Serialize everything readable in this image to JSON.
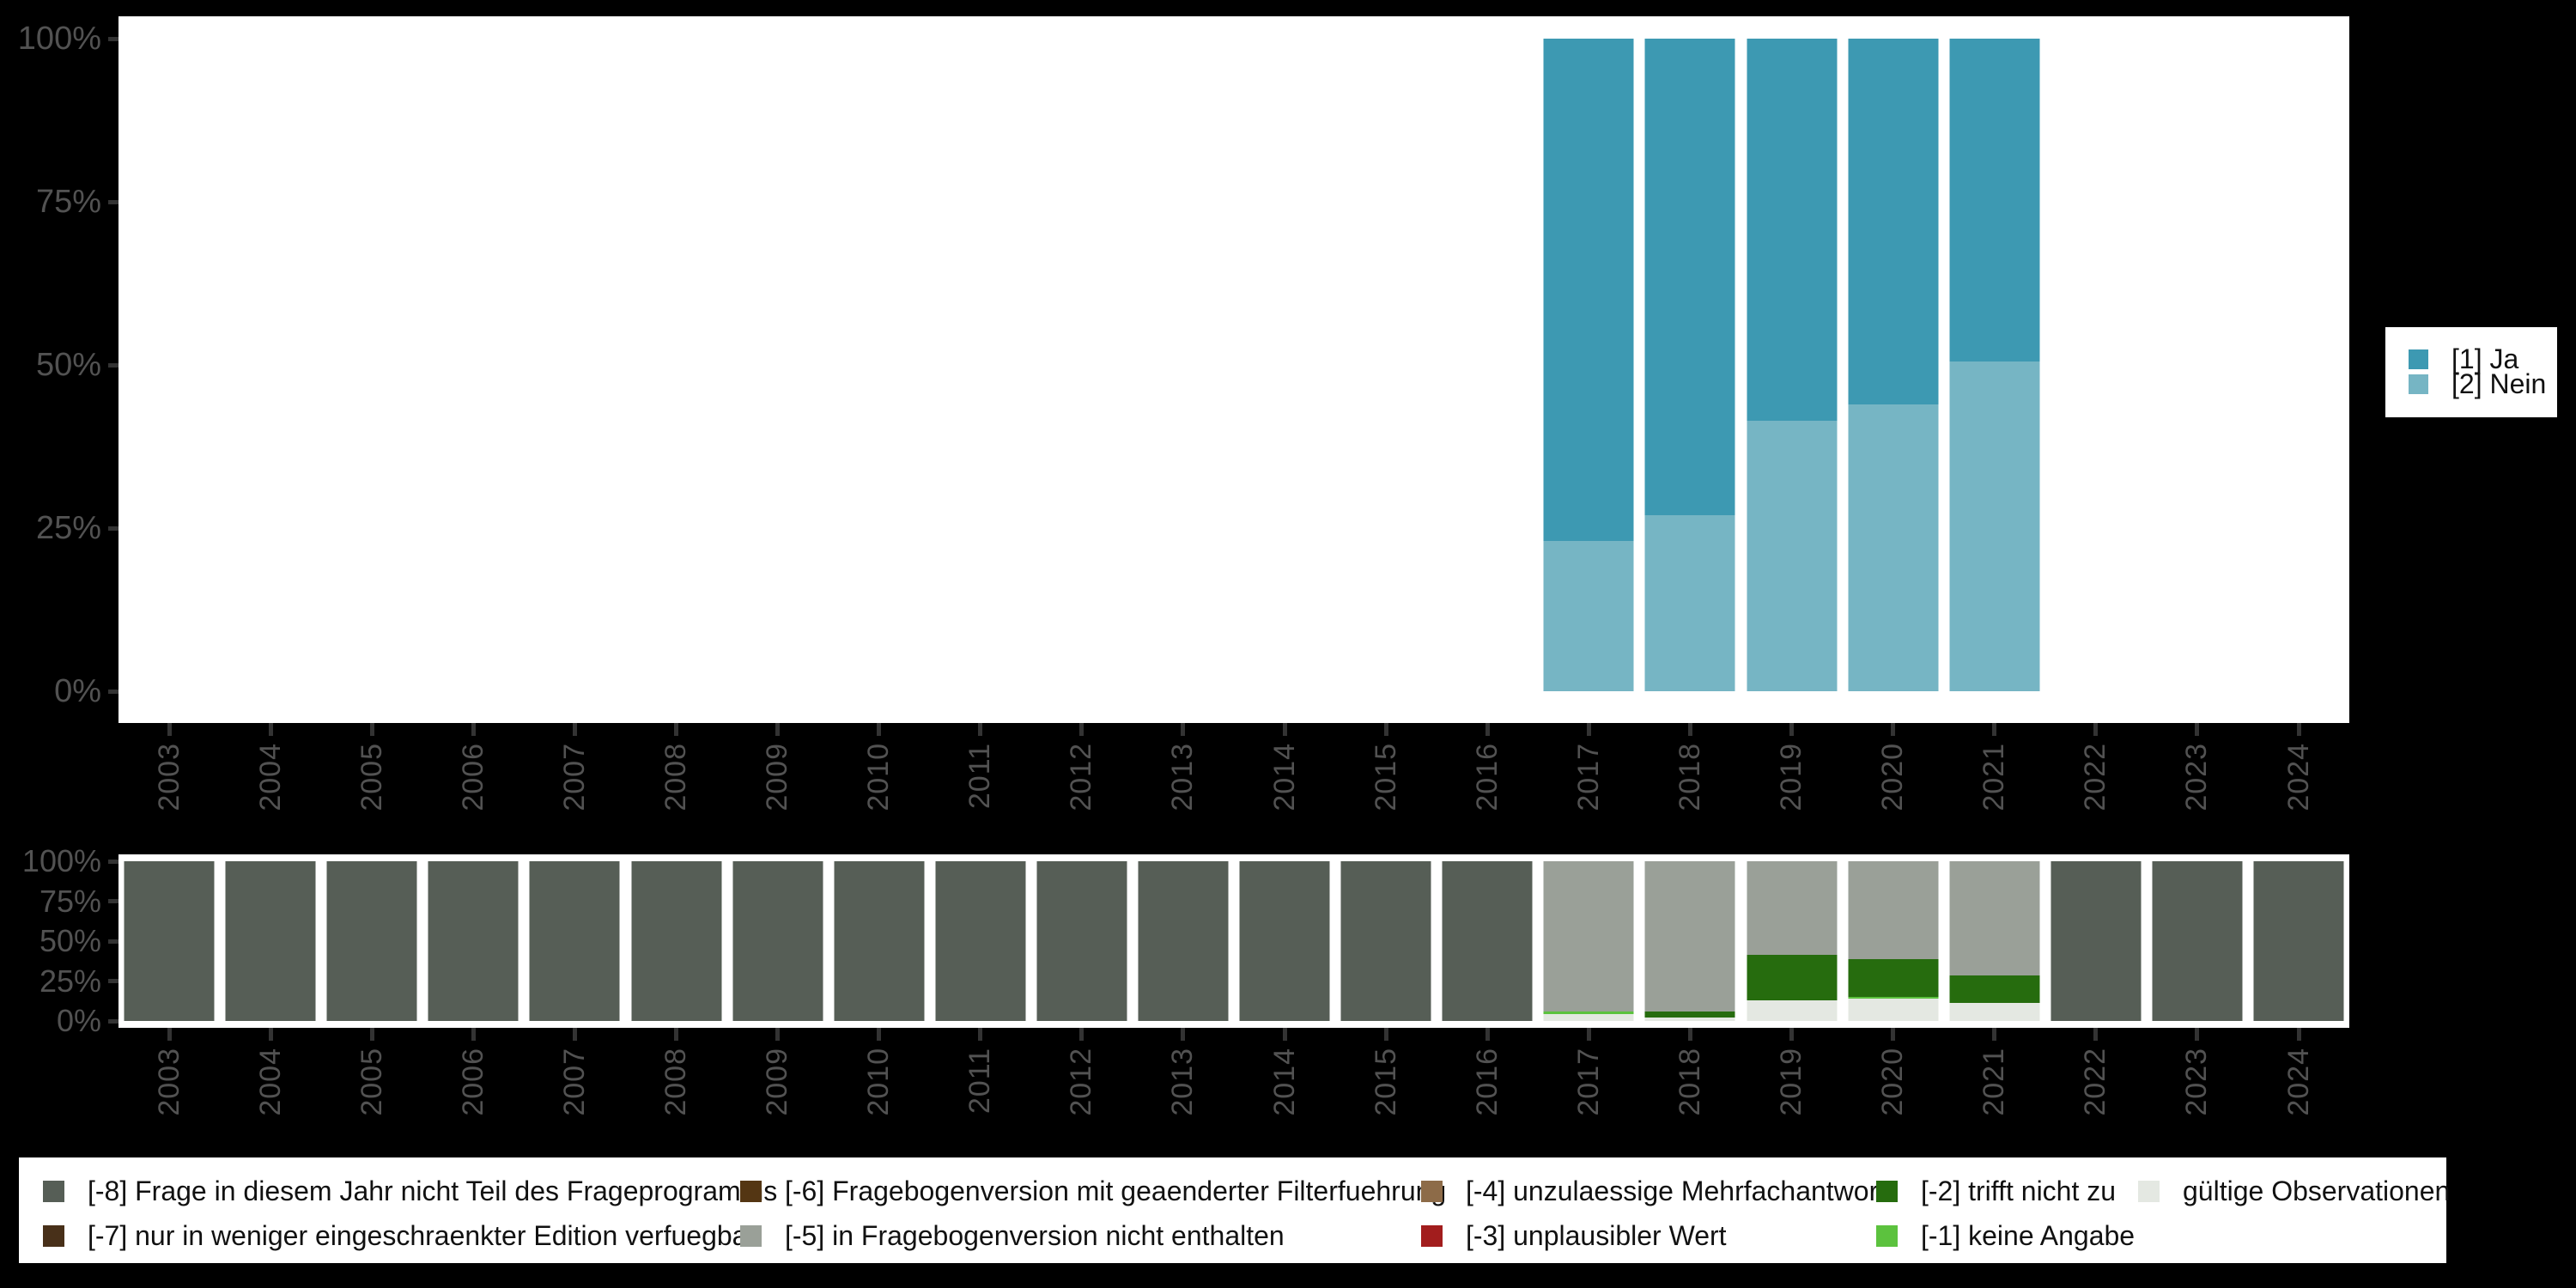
{
  "colors": {
    "background": "#000000",
    "plot_background": "#ffffff",
    "axis_text": "#525252",
    "tick_mark": "#333333",
    "legend_text": "#111111",
    "ja": "#3d99b2",
    "nein": "#76b5c4",
    "-8": "#565e56",
    "-7": "#483019",
    "-6": "#543613",
    "-5": "#9aa098",
    "-4": "#8d6b48",
    "-3": "#a21d1d",
    "-2": "#266c0e",
    "-1": "#5cc23e",
    "valid": "#e4e8e2"
  },
  "categories": [
    "2003",
    "2004",
    "2005",
    "2006",
    "2007",
    "2008",
    "2009",
    "2010",
    "2011",
    "2012",
    "2013",
    "2014",
    "2015",
    "2016",
    "2017",
    "2018",
    "2019",
    "2020",
    "2021",
    "2022",
    "2023",
    "2024"
  ],
  "y_tick_labels": [
    "100%",
    "75%",
    "50%",
    "25%",
    "0%"
  ],
  "chart_data": [
    {
      "type": "bar",
      "stacked": true,
      "unit": "percent",
      "title": "",
      "xlabel": "",
      "ylabel": "",
      "ylim": [
        0,
        100
      ],
      "y_tick_labels": [
        "100%",
        "75%",
        "50%",
        "25%",
        "0%"
      ],
      "categories": [
        "2003",
        "2004",
        "2005",
        "2006",
        "2007",
        "2008",
        "2009",
        "2010",
        "2011",
        "2012",
        "2013",
        "2014",
        "2015",
        "2016",
        "2017",
        "2018",
        "2019",
        "2020",
        "2021",
        "2022",
        "2023",
        "2024"
      ],
      "legend_position": "right",
      "series": [
        {
          "name": "[1] Ja",
          "color_key": "ja",
          "values": [
            null,
            null,
            null,
            null,
            null,
            null,
            null,
            null,
            null,
            null,
            null,
            null,
            null,
            null,
            77,
            73,
            58.5,
            56,
            49.5,
            null,
            null,
            null
          ]
        },
        {
          "name": "[2] Nein",
          "color_key": "nein",
          "values": [
            null,
            null,
            null,
            null,
            null,
            null,
            null,
            null,
            null,
            null,
            null,
            null,
            null,
            null,
            23,
            27,
            41.5,
            44,
            50.5,
            null,
            null,
            null
          ]
        }
      ]
    },
    {
      "type": "bar",
      "stacked": true,
      "unit": "percent",
      "title": "",
      "xlabel": "",
      "ylabel": "",
      "ylim": [
        0,
        100
      ],
      "y_tick_labels": [
        "100%",
        "75%",
        "50%",
        "25%",
        "0%"
      ],
      "categories": [
        "2003",
        "2004",
        "2005",
        "2006",
        "2007",
        "2008",
        "2009",
        "2010",
        "2011",
        "2012",
        "2013",
        "2014",
        "2015",
        "2016",
        "2017",
        "2018",
        "2019",
        "2020",
        "2021",
        "2022",
        "2023",
        "2024"
      ],
      "legend_position": "bottom",
      "series": [
        {
          "name": "[-8] Frage in diesem Jahr nicht Teil des Frageprogramms",
          "color_key": "-8",
          "values": [
            100,
            100,
            100,
            100,
            100,
            100,
            100,
            100,
            100,
            100,
            100,
            100,
            100,
            100,
            0,
            0,
            0,
            0,
            0,
            100,
            100,
            100
          ]
        },
        {
          "name": "[-5] in Fragebogenversion nicht enthalten",
          "color_key": "-5",
          "values": [
            0,
            0,
            0,
            0,
            0,
            0,
            0,
            0,
            0,
            0,
            0,
            0,
            0,
            0,
            94,
            94,
            58.5,
            61.5,
            71.5,
            0,
            0,
            0
          ]
        },
        {
          "name": "[-2] trifft nicht zu",
          "color_key": "-2",
          "values": [
            0,
            0,
            0,
            0,
            0,
            0,
            0,
            0,
            0,
            0,
            0,
            0,
            0,
            0,
            0,
            4,
            28.5,
            23.5,
            17,
            0,
            0,
            0
          ]
        },
        {
          "name": "[-1] keine Angabe",
          "color_key": "-1",
          "values": [
            0,
            0,
            0,
            0,
            0,
            0,
            0,
            0,
            0,
            0,
            0,
            0,
            0,
            0,
            1.5,
            0,
            0,
            1,
            0,
            0,
            0,
            0
          ]
        },
        {
          "name": "gültige Observationen",
          "color_key": "valid",
          "values": [
            0,
            0,
            0,
            0,
            0,
            0,
            0,
            0,
            0,
            0,
            0,
            0,
            0,
            0,
            4.5,
            2,
            13,
            14,
            11.5,
            0,
            0,
            0
          ]
        }
      ]
    }
  ],
  "answer_legend": {
    "items": [
      {
        "label": "[1] Ja",
        "color_key": "ja"
      },
      {
        "label": "[2] Nein",
        "color_key": "nein"
      }
    ]
  },
  "missing_legend": {
    "columns": [
      [
        {
          "label": "[-8] Frage in diesem Jahr nicht Teil des Frageprogramms",
          "color_key": "-8"
        },
        {
          "label": "[-7] nur in weniger eingeschraenkter Edition verfuegbar",
          "color_key": "-7"
        }
      ],
      [
        {
          "label": "[-6] Fragebogenversion mit geaenderter Filterfuehrung",
          "color_key": "-6"
        },
        {
          "label": "[-5] in Fragebogenversion nicht enthalten",
          "color_key": "-5"
        }
      ],
      [
        {
          "label": "[-4] unzulaessige Mehrfachantwort",
          "color_key": "-4"
        },
        {
          "label": "[-3] unplausibler Wert",
          "color_key": "-3"
        }
      ],
      [
        {
          "label": "[-2] trifft nicht zu",
          "color_key": "-2"
        },
        {
          "label": "[-1] keine Angabe",
          "color_key": "-1"
        }
      ],
      [
        {
          "label": "gültige Observationen",
          "color_key": "valid"
        }
      ]
    ]
  }
}
